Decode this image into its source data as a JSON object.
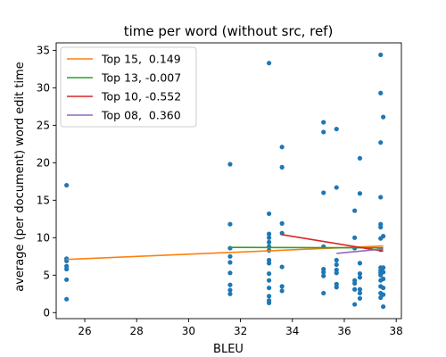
{
  "chart_data": {
    "type": "scatter",
    "title": "time per word (without src, ref)",
    "xlabel": "BLEU",
    "ylabel": "average (per document) word edit time",
    "xlim": [
      24.9,
      38.2
    ],
    "ylim": [
      -0.8,
      36.0
    ],
    "xticks": [
      26,
      28,
      30,
      32,
      34,
      36,
      38
    ],
    "yticks": [
      0,
      5,
      10,
      15,
      20,
      25,
      30,
      35
    ],
    "grid": false,
    "legend_position": "top-left",
    "point_color": "#1f77b4",
    "points": [
      [
        25.3,
        17.0
      ],
      [
        25.3,
        7.2
      ],
      [
        25.3,
        6.9
      ],
      [
        25.3,
        6.2
      ],
      [
        25.3,
        5.8
      ],
      [
        25.3,
        4.4
      ],
      [
        25.3,
        1.8
      ],
      [
        31.6,
        19.8
      ],
      [
        31.6,
        11.8
      ],
      [
        31.6,
        8.6
      ],
      [
        31.6,
        7.5
      ],
      [
        31.6,
        6.7
      ],
      [
        31.6,
        5.3
      ],
      [
        31.6,
        3.7
      ],
      [
        31.6,
        3.0
      ],
      [
        31.6,
        2.5
      ],
      [
        33.1,
        33.3
      ],
      [
        33.1,
        13.2
      ],
      [
        33.1,
        10.5
      ],
      [
        33.1,
        10.0
      ],
      [
        33.1,
        9.4
      ],
      [
        33.1,
        8.8
      ],
      [
        33.1,
        8.3
      ],
      [
        33.1,
        7.0
      ],
      [
        33.1,
        6.6
      ],
      [
        33.1,
        5.2
      ],
      [
        33.1,
        4.3
      ],
      [
        33.1,
        3.3
      ],
      [
        33.1,
        2.2
      ],
      [
        33.1,
        1.6
      ],
      [
        33.1,
        1.3
      ],
      [
        33.6,
        22.1
      ],
      [
        33.6,
        19.4
      ],
      [
        33.6,
        11.9
      ],
      [
        33.6,
        10.6
      ],
      [
        33.6,
        6.1
      ],
      [
        33.6,
        3.5
      ],
      [
        33.6,
        2.9
      ],
      [
        35.2,
        25.4
      ],
      [
        35.2,
        24.1
      ],
      [
        35.2,
        16.0
      ],
      [
        35.2,
        8.8
      ],
      [
        35.2,
        5.8
      ],
      [
        35.2,
        5.4
      ],
      [
        35.2,
        4.9
      ],
      [
        35.2,
        2.6
      ],
      [
        35.7,
        24.5
      ],
      [
        35.7,
        16.7
      ],
      [
        35.7,
        7.0
      ],
      [
        35.7,
        6.4
      ],
      [
        35.7,
        5.7
      ],
      [
        35.7,
        5.3
      ],
      [
        35.7,
        3.8
      ],
      [
        35.7,
        3.4
      ],
      [
        36.4,
        13.6
      ],
      [
        36.4,
        10.0
      ],
      [
        36.4,
        8.6
      ],
      [
        36.4,
        4.3
      ],
      [
        36.4,
        3.9
      ],
      [
        36.4,
        3.1
      ],
      [
        36.4,
        1.1
      ],
      [
        36.6,
        20.6
      ],
      [
        36.6,
        15.9
      ],
      [
        36.6,
        6.6
      ],
      [
        36.6,
        5.2
      ],
      [
        36.6,
        4.7
      ],
      [
        36.6,
        3.1
      ],
      [
        36.6,
        2.6
      ],
      [
        36.6,
        1.9
      ],
      [
        37.4,
        34.4
      ],
      [
        37.4,
        29.3
      ],
      [
        37.4,
        22.7
      ],
      [
        37.4,
        15.4
      ],
      [
        37.4,
        11.8
      ],
      [
        37.4,
        11.4
      ],
      [
        37.4,
        9.9
      ],
      [
        37.4,
        8.4
      ],
      [
        37.4,
        6.0
      ],
      [
        37.4,
        5.6
      ],
      [
        37.4,
        5.3
      ],
      [
        37.4,
        5.0
      ],
      [
        37.4,
        4.3
      ],
      [
        37.4,
        3.5
      ],
      [
        37.4,
        2.6
      ],
      [
        37.4,
        2.0
      ],
      [
        37.5,
        26.1
      ],
      [
        37.5,
        10.2
      ],
      [
        37.5,
        6.0
      ],
      [
        37.5,
        5.4
      ],
      [
        37.5,
        4.5
      ],
      [
        37.5,
        3.3
      ],
      [
        37.5,
        2.4
      ],
      [
        37.5,
        0.8
      ]
    ],
    "series": [
      {
        "name": "Top 15,  0.149",
        "color": "#ff7f0e",
        "x": [
          25.3,
          37.5
        ],
        "y": [
          7.1,
          8.9
        ]
      },
      {
        "name": "Top 13, -0.007",
        "color": "#2ca02c",
        "x": [
          31.6,
          37.5
        ],
        "y": [
          8.7,
          8.65
        ]
      },
      {
        "name": "Top 10, -0.552",
        "color": "#d62728",
        "x": [
          33.6,
          37.5
        ],
        "y": [
          10.4,
          8.2
        ]
      },
      {
        "name": "Top 08,  0.360",
        "color": "#9467bd",
        "x": [
          35.7,
          37.5
        ],
        "y": [
          7.9,
          8.5
        ]
      }
    ]
  }
}
